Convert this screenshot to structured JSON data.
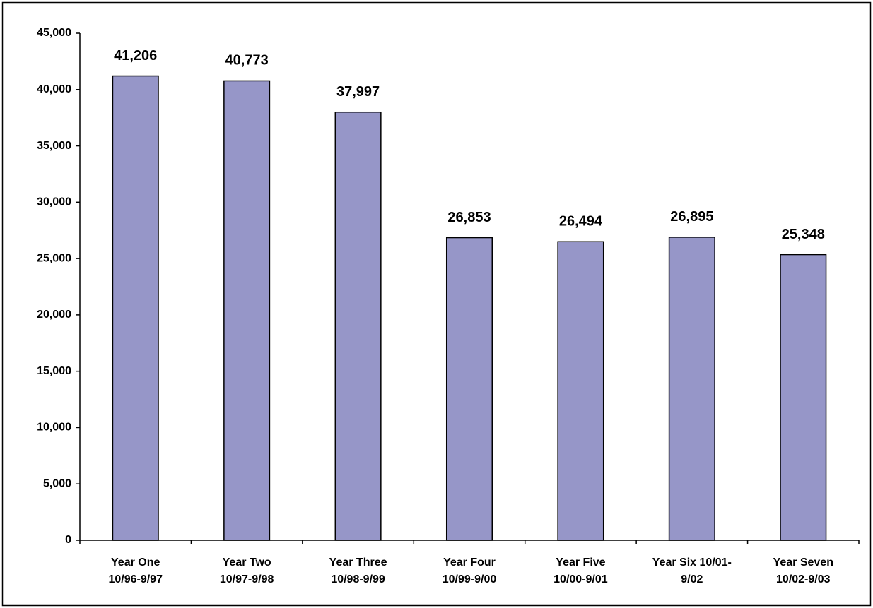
{
  "chart_data": {
    "type": "bar",
    "categories": [
      [
        "Year One",
        "10/96-9/97"
      ],
      [
        "Year Two",
        "10/97-9/98"
      ],
      [
        "Year Three",
        "10/98-9/99"
      ],
      [
        "Year Four",
        "10/99-9/00"
      ],
      [
        "Year Five",
        "10/00-9/01"
      ],
      [
        "Year Six 10/01-",
        "9/02"
      ],
      [
        "Year Seven",
        "10/02-9/03"
      ]
    ],
    "values": [
      41206,
      40773,
      37997,
      26853,
      26494,
      26895,
      25348
    ],
    "value_labels": [
      "41,206",
      "40,773",
      "37,997",
      "26,853",
      "26,494",
      "26,895",
      "25,348"
    ],
    "color": "#9696c8",
    "ylim": [
      0,
      45000
    ],
    "yticks": [
      0,
      {
        "value": 5000,
        "label": "5,000"
      },
      {
        "value": 10000,
        "label": "10,000"
      },
      {
        "value": 15000,
        "label": "15,000"
      },
      {
        "value": 20000,
        "label": "20,000"
      },
      {
        "value": 25000,
        "label": "25,000"
      },
      {
        "value": 30000,
        "label": "30,000"
      },
      {
        "value": 35000,
        "label": "35,000"
      },
      {
        "value": 40000,
        "label": "40,000"
      },
      {
        "value": 45000,
        "label": "45,000"
      }
    ],
    "grid": false
  }
}
